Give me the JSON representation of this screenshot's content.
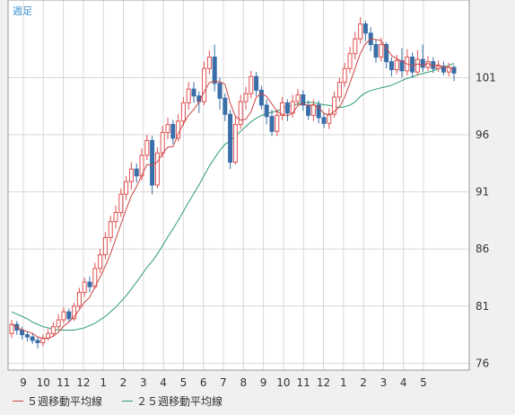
{
  "chart_data": {
    "type": "candlestick",
    "period_label": "週足",
    "y_ticks": [
      76,
      81,
      86,
      91,
      96,
      101
    ],
    "ylim": [
      75.4,
      107.8
    ],
    "x_tick_labels": [
      "9",
      "10",
      "11",
      "12",
      "1",
      "2",
      "3",
      "4",
      "5",
      "6",
      "7",
      "8",
      "9",
      "10",
      "11",
      "12",
      "1",
      "2",
      "3",
      "4",
      "5"
    ],
    "grid": true,
    "colors": {
      "up": "#e05050",
      "down": "#3a6ea8",
      "ma5": "#cc4444",
      "ma25": "#2e9e6e"
    },
    "series": [
      {
        "name": "５週移動平均線",
        "color": "#cc4444"
      },
      {
        "name": "２５週移動平均線",
        "color": "#2e9e6e"
      }
    ],
    "candles": [
      [
        78.6,
        79.4,
        78.2,
        79.8
      ],
      [
        79.4,
        78.9,
        78.5,
        79.7
      ],
      [
        78.9,
        78.5,
        78.1,
        79.2
      ],
      [
        78.5,
        78.3,
        77.9,
        78.8
      ],
      [
        78.3,
        78.0,
        77.7,
        78.6
      ],
      [
        78.0,
        77.8,
        77.3,
        78.3
      ],
      [
        77.8,
        78.2,
        77.5,
        78.5
      ],
      [
        78.2,
        78.6,
        78.0,
        79.0
      ],
      [
        78.6,
        79.2,
        78.3,
        79.6
      ],
      [
        79.2,
        79.8,
        78.9,
        80.3
      ],
      [
        79.8,
        80.5,
        79.5,
        80.9
      ],
      [
        80.5,
        79.9,
        79.6,
        80.8
      ],
      [
        79.9,
        81.0,
        79.7,
        81.3
      ],
      [
        81.0,
        82.2,
        80.8,
        82.6
      ],
      [
        82.2,
        83.1,
        81.8,
        83.5
      ],
      [
        83.1,
        82.7,
        82.2,
        83.6
      ],
      [
        82.7,
        84.3,
        82.5,
        84.8
      ],
      [
        84.3,
        85.5,
        83.9,
        86.0
      ],
      [
        85.5,
        87.0,
        85.1,
        87.5
      ],
      [
        87.0,
        88.4,
        86.6,
        88.9
      ],
      [
        88.4,
        89.2,
        87.8,
        89.8
      ],
      [
        89.2,
        90.8,
        88.8,
        91.3
      ],
      [
        90.8,
        91.9,
        90.3,
        92.4
      ],
      [
        91.9,
        93.0,
        91.2,
        93.6
      ],
      [
        93.0,
        92.4,
        91.8,
        93.5
      ],
      [
        92.4,
        94.2,
        92.0,
        94.8
      ],
      [
        94.2,
        95.5,
        93.8,
        96.0
      ],
      [
        95.5,
        91.6,
        90.8,
        95.9
      ],
      [
        91.6,
        94.4,
        91.3,
        94.9
      ],
      [
        94.4,
        96.2,
        94.0,
        96.8
      ],
      [
        96.2,
        96.9,
        95.6,
        97.5
      ],
      [
        96.9,
        95.7,
        95.2,
        97.3
      ],
      [
        95.7,
        97.2,
        95.4,
        97.8
      ],
      [
        97.2,
        98.8,
        96.8,
        99.3
      ],
      [
        98.8,
        100.0,
        98.2,
        100.6
      ],
      [
        100.0,
        99.4,
        98.8,
        100.6
      ],
      [
        99.4,
        98.9,
        97.9,
        99.8
      ],
      [
        98.9,
        101.8,
        98.6,
        102.4
      ],
      [
        101.8,
        102.8,
        101.3,
        103.4
      ],
      [
        102.8,
        100.5,
        99.8,
        103.9
      ],
      [
        100.5,
        99.2,
        98.2,
        101.0
      ],
      [
        99.2,
        97.8,
        97.2,
        99.6
      ],
      [
        97.8,
        93.6,
        93.0,
        98.2
      ],
      [
        93.6,
        96.9,
        93.4,
        97.6
      ],
      [
        96.9,
        98.9,
        96.5,
        99.5
      ],
      [
        98.9,
        99.6,
        98.2,
        100.2
      ],
      [
        99.6,
        101.1,
        99.2,
        101.6
      ],
      [
        101.1,
        99.9,
        99.4,
        101.5
      ],
      [
        99.9,
        98.6,
        98.2,
        100.3
      ],
      [
        98.6,
        97.6,
        96.9,
        99.1
      ],
      [
        97.6,
        96.3,
        95.9,
        98.2
      ],
      [
        96.3,
        97.7,
        95.9,
        98.2
      ],
      [
        97.7,
        98.8,
        97.3,
        99.3
      ],
      [
        98.8,
        97.9,
        97.2,
        99.1
      ],
      [
        97.9,
        98.9,
        97.5,
        99.5
      ],
      [
        98.9,
        99.5,
        98.5,
        100.0
      ],
      [
        99.5,
        98.6,
        98.1,
        99.9
      ],
      [
        98.6,
        97.7,
        97.3,
        99.0
      ],
      [
        97.7,
        98.6,
        97.2,
        99.1
      ],
      [
        98.6,
        97.5,
        97.0,
        99.0
      ],
      [
        97.5,
        97.0,
        96.6,
        97.9
      ],
      [
        97.0,
        97.8,
        96.5,
        98.3
      ],
      [
        97.8,
        99.3,
        97.5,
        99.8
      ],
      [
        99.3,
        100.6,
        98.9,
        101.0
      ],
      [
        100.6,
        101.8,
        100.2,
        102.3
      ],
      [
        101.8,
        103.1,
        101.4,
        103.7
      ],
      [
        103.1,
        104.4,
        102.6,
        105.0
      ],
      [
        104.4,
        105.7,
        104.0,
        106.3
      ],
      [
        105.7,
        104.9,
        104.2,
        106.0
      ],
      [
        104.9,
        103.9,
        103.3,
        105.4
      ],
      [
        103.9,
        102.8,
        102.3,
        104.3
      ],
      [
        102.8,
        103.9,
        102.4,
        104.5
      ],
      [
        103.9,
        102.4,
        101.8,
        104.1
      ],
      [
        102.4,
        101.7,
        101.1,
        102.8
      ],
      [
        101.7,
        102.5,
        101.3,
        103.0
      ],
      [
        102.5,
        101.6,
        101.0,
        103.6
      ],
      [
        101.6,
        102.8,
        101.2,
        103.5
      ],
      [
        102.8,
        101.5,
        101.0,
        103.2
      ],
      [
        101.5,
        102.6,
        101.2,
        103.4
      ],
      [
        102.6,
        101.9,
        101.5,
        103.9
      ],
      [
        101.9,
        102.4,
        101.6,
        102.9
      ],
      [
        102.4,
        101.8,
        101.4,
        102.8
      ],
      [
        101.8,
        102.0,
        101.5,
        102.5
      ],
      [
        102.0,
        101.5,
        101.2,
        102.4
      ],
      [
        101.5,
        101.9,
        101.1,
        102.3
      ],
      [
        101.9,
        101.4,
        100.7,
        102.1
      ]
    ],
    "ma25_start": [
      80.5,
      80.3,
      80.1,
      79.9,
      79.6,
      79.4,
      79.2,
      79.1,
      79.0,
      78.9,
      78.9,
      78.9,
      78.9,
      79.0,
      79.1,
      79.3,
      79.5,
      79.8,
      80.1,
      80.5,
      80.9,
      81.4,
      81.9,
      82.5,
      83.1
    ]
  }
}
